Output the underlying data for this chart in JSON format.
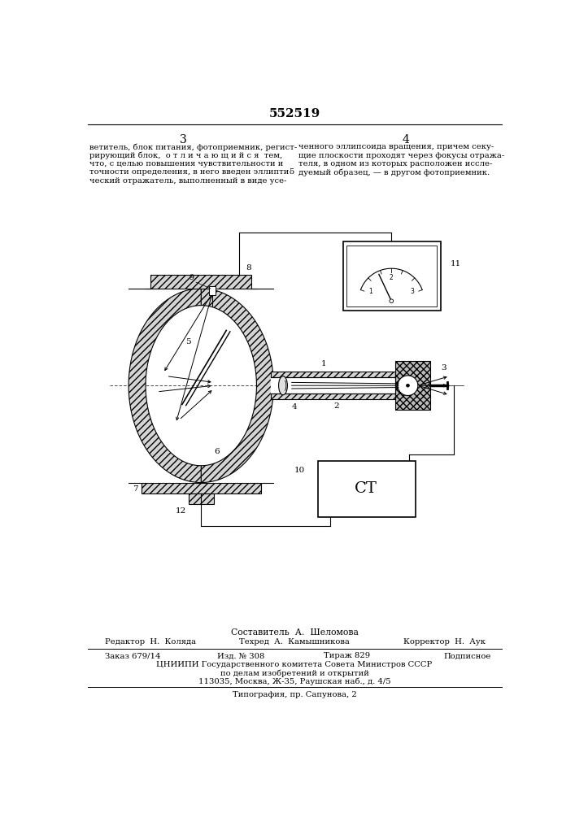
{
  "title_number": "552519",
  "page_left": "3",
  "page_right": "4",
  "text_left": "ветитель, блок питания, фотоприемник, регист-\nрирующий блок,  о т л и ч а ю щ и й с я  тем,\nчто, с целью повышения чувствительности и\nточности определения, в него введен эллипти-\nческий отражатель, выполненный в виде усе-",
  "text_right": "ченного эллипсоида вращения, причем секу-\nщие плоскости проходят через фокусы отража-\nтеля, в одном из которых расположен иссле-\nдуемый образец, — в другом фотоприемник.",
  "line5": "5",
  "bg_color": "#ffffff",
  "footer_composer": "Составитель  А.  Шеломова",
  "footer_editor": "Редактор  Н.  Коляда",
  "footer_techred": "Техред  А.  Камышникова",
  "footer_corrector": "Корректор  Н.  Аук",
  "footer_order": "Заказ 679/14",
  "footer_izd": "Изд. № 308",
  "footer_tirazh": "Тираж 829",
  "footer_podpisnoe": "Подписное",
  "footer_org": "ЦНИИПИ Государственного комитета Совета Министров СССР",
  "footer_dept": "по делам изобретений и открытий",
  "footer_addr": "113035, Москва, Ж-35, Раушская наб., д. 4/5",
  "footer_typography": "Типография, пр. Сапунова, 2"
}
